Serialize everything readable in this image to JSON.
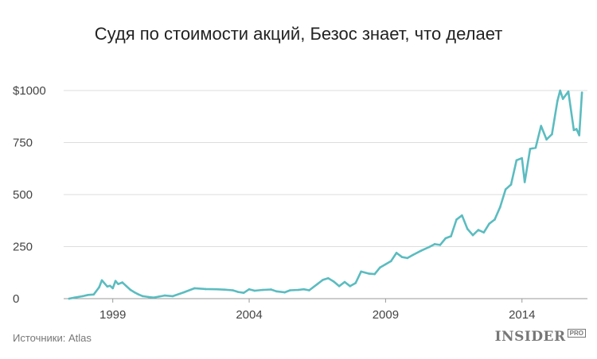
{
  "title": "Судя по стоимости акций, Безос знает, что делает",
  "source": "Источники: Atlas",
  "brand": {
    "name": "INSIDER",
    "badge": "PRO"
  },
  "colors": {
    "line": "#5bbcc0",
    "grid": "#dddddd",
    "text": "#444444"
  },
  "chart_data": {
    "type": "line",
    "title": "Судя по стоимости акций, Безос знает, что делает",
    "xlabel": "",
    "ylabel": "",
    "xlim": [
      1997.2,
      2016.4
    ],
    "ylim": [
      0,
      1000
    ],
    "x_ticks": [
      1999,
      2004,
      2009,
      2014
    ],
    "x_tick_labels": [
      "1999",
      "2004",
      "2009",
      "2014"
    ],
    "y_ticks": [
      0,
      250,
      500,
      750,
      1000
    ],
    "y_tick_labels": [
      "0",
      "250",
      "500",
      "750",
      "$1000"
    ],
    "grid": true,
    "series": [
      {
        "x": [
          1997.4,
          1997.6,
          1997.9,
          1998.1,
          1998.3,
          1998.5,
          1998.6,
          1998.8,
          1998.9,
          1999.0,
          1999.1,
          1999.2,
          1999.35,
          1999.5,
          1999.65,
          1999.8,
          1999.95,
          2000.1,
          2000.3,
          2000.5,
          2000.7,
          2000.9,
          2001.2,
          2001.6,
          2002.0,
          2002.4,
          2002.8,
          2003.1,
          2003.4,
          2003.6,
          2003.8,
          2004.0,
          2004.2,
          2004.5,
          2004.8,
          2005.0,
          2005.3,
          2005.5,
          2005.8,
          2006.0,
          2006.2,
          2006.5,
          2006.7,
          2006.9,
          2007.1,
          2007.3,
          2007.5,
          2007.7,
          2007.9,
          2008.1,
          2008.4,
          2008.6,
          2008.8,
          2009.0,
          2009.2,
          2009.4,
          2009.6,
          2009.8,
          2010.0,
          2010.3,
          2010.6,
          2010.8,
          2011.0,
          2011.2,
          2011.4,
          2011.6,
          2011.8,
          2012.0,
          2012.2,
          2012.4,
          2012.6,
          2012.8,
          2013.0,
          2013.2,
          2013.4,
          2013.6,
          2013.8,
          2014.0,
          2014.1,
          2014.3,
          2014.5,
          2014.7,
          2014.9,
          2015.1,
          2015.3,
          2015.4,
          2015.5,
          2015.7,
          2015.9,
          2016.0,
          2016.1,
          2016.2
        ],
        "values": [
          0,
          5,
          12,
          18,
          20,
          55,
          88,
          58,
          62,
          50,
          85,
          70,
          78,
          60,
          42,
          30,
          20,
          12,
          8,
          5,
          10,
          15,
          12,
          30,
          50,
          46,
          45,
          43,
          40,
          32,
          28,
          45,
          38,
          42,
          44,
          35,
          30,
          40,
          42,
          45,
          40,
          70,
          90,
          98,
          82,
          60,
          80,
          60,
          75,
          130,
          120,
          118,
          150,
          165,
          180,
          220,
          200,
          195,
          210,
          230,
          248,
          262,
          258,
          290,
          300,
          380,
          400,
          335,
          305,
          330,
          318,
          360,
          380,
          440,
          525,
          548,
          665,
          675,
          560,
          720,
          725,
          830,
          765,
          790,
          950,
          1000,
          960,
          995,
          810,
          815,
          785,
          990
        ],
        "note": ""
      }
    ]
  }
}
